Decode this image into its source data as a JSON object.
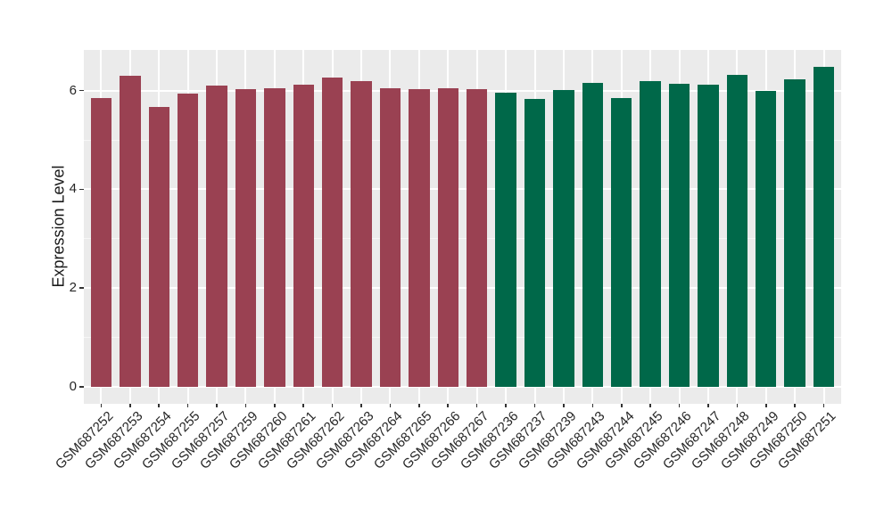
{
  "figure": {
    "background": "#FFFFFF",
    "panel_background": "#EBEBEB",
    "gridline_color": "#FFFFFF",
    "tick_color": "#333333",
    "axis_text_color": "#262626"
  },
  "chart_data": {
    "type": "bar",
    "title": "",
    "xlabel": "",
    "ylabel": "Expression Level",
    "legend_position": "none",
    "grid": "on",
    "y_ticks": [
      0,
      2,
      4,
      6
    ],
    "y_minor_gridlines": [
      1,
      3,
      5
    ],
    "ylim": [
      -0.33,
      6.84
    ],
    "groups": [
      {
        "name": "group-red",
        "color": "#9A4152"
      },
      {
        "name": "group-green",
        "color": "#006849"
      }
    ],
    "categories": [
      "GSM687252",
      "GSM687253",
      "GSM687254",
      "GSM687255",
      "GSM687257",
      "GSM687259",
      "GSM687260",
      "GSM687261",
      "GSM687262",
      "GSM687263",
      "GSM687264",
      "GSM687265",
      "GSM687266",
      "GSM687267",
      "GSM687236",
      "GSM687237",
      "GSM687239",
      "GSM687243",
      "GSM687244",
      "GSM687245",
      "GSM687246",
      "GSM687247",
      "GSM687248",
      "GSM687249",
      "GSM687250",
      "GSM687251"
    ],
    "values": [
      5.85,
      6.3,
      5.67,
      5.93,
      6.1,
      6.02,
      6.04,
      6.12,
      6.26,
      6.19,
      6.04,
      6.03,
      6.05,
      6.03,
      5.95,
      5.83,
      6.01,
      6.15,
      5.84,
      6.19,
      6.13,
      6.12,
      6.32,
      5.99,
      6.22,
      6.48
    ],
    "bar_groups": [
      0,
      0,
      0,
      0,
      0,
      0,
      0,
      0,
      0,
      0,
      0,
      0,
      0,
      0,
      1,
      1,
      1,
      1,
      1,
      1,
      1,
      1,
      1,
      1,
      1,
      1
    ]
  }
}
